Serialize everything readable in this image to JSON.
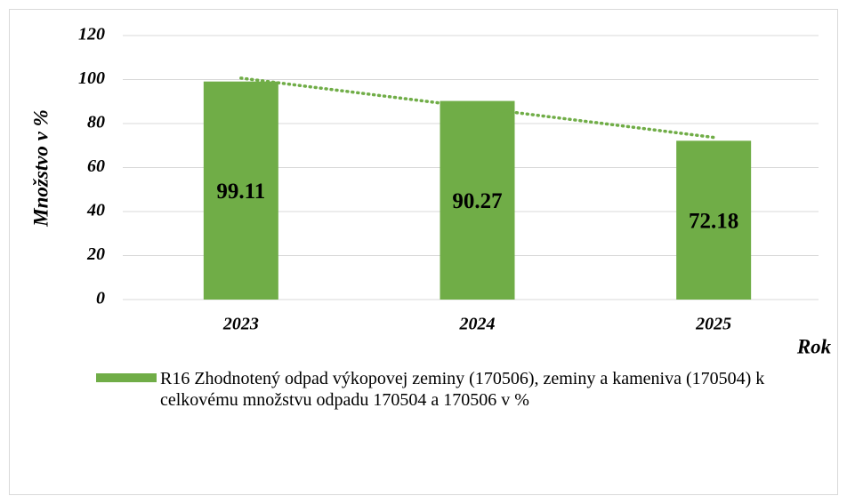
{
  "chart_data": {
    "type": "bar",
    "categories": [
      "2023",
      "2024",
      "2025"
    ],
    "series": [
      {
        "name": "R16 Zhodnotený odpad výkopovej zeminy (170506), zeminy a kameniva (170504)  k celkovému množstvu odpadu 170504 a 170506 v %",
        "color": "#70ad47",
        "values": [
          99.11,
          90.27,
          72.18
        ]
      }
    ],
    "y_label": "Množstvo v %",
    "x_label": "Rok",
    "ylim": [
      0,
      120
    ],
    "yticks": [
      0,
      20,
      40,
      60,
      80,
      100,
      120
    ],
    "grid": true,
    "trendline": "linear",
    "trendline_color": "#70ad47",
    "data_labels": true,
    "legend": "bottom"
  }
}
